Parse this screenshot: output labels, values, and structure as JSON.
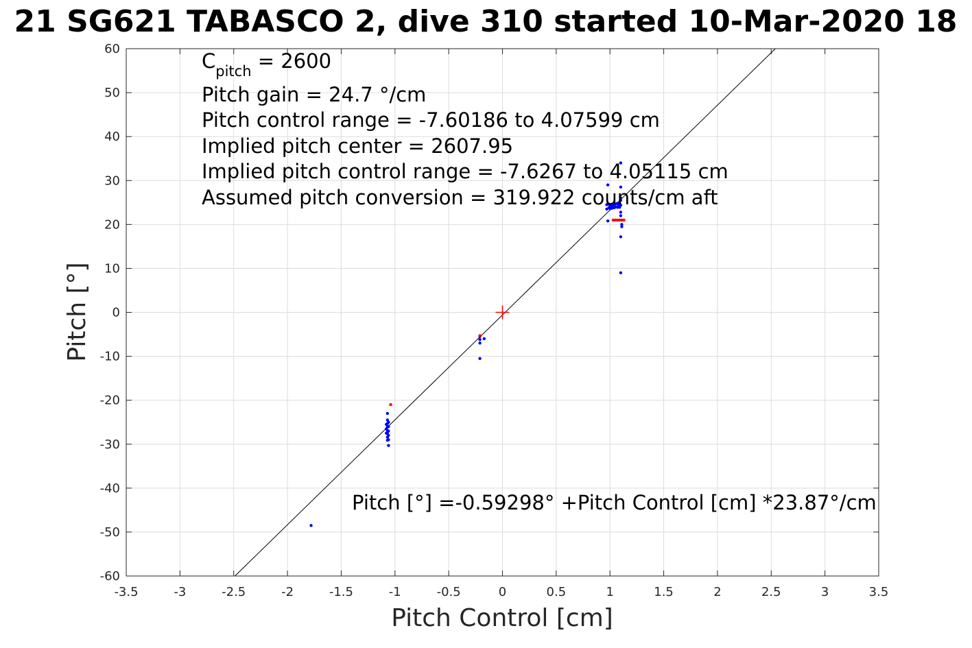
{
  "chart_data": {
    "type": "scatter",
    "title": "21 SG621 TABASCO 2, dive 310 started 10-Mar-2020 18",
    "xlabel": "Pitch Control [cm]",
    "ylabel": "Pitch [°]",
    "xlim": [
      -3.5,
      3.5
    ],
    "ylim": [
      -60,
      60
    ],
    "grid": true,
    "x_ticks": [
      -3.5,
      -3,
      -2.5,
      -2,
      -1.5,
      -1,
      -0.5,
      0,
      0.5,
      1,
      1.5,
      2,
      2.5,
      3,
      3.5
    ],
    "x_tick_labels": [
      "-3.5",
      "-3",
      "-2.5",
      "-2",
      "-1.5",
      "-1",
      "-0.5",
      "0",
      "0.5",
      "1",
      "1.5",
      "2",
      "2.5",
      "3",
      "3.5"
    ],
    "y_ticks": [
      60,
      50,
      40,
      30,
      20,
      10,
      0,
      -10,
      -20,
      -30,
      -40,
      -50,
      -60
    ],
    "y_tick_labels": [
      "60",
      "50",
      "40",
      "30",
      "20",
      "10",
      "0",
      "-10",
      "-20",
      "-30",
      "-40",
      "-50",
      "-60"
    ],
    "colors": {
      "blue": "#0000ff",
      "red": "#ff0000",
      "line": "#000000"
    },
    "fit_line": {
      "intercept": -0.59298,
      "slope": 23.87
    },
    "center_marker": {
      "x": 0,
      "y": 0
    },
    "annotations": {
      "c_pitch_main": "C",
      "c_pitch_sub": "pitch",
      "c_pitch_value": " = 2600",
      "pitch_gain": "Pitch gain = 24.7 °/cm",
      "control_range": "Pitch control range = -7.60186 to 4.07599 cm",
      "implied_center": "Implied pitch center = 2607.95",
      "implied_range": "Implied pitch control range = -7.6267 to 4.05115 cm",
      "conversion": "Assumed pitch conversion = 319.922 counts/cm aft",
      "fit_equation": "Pitch [°] =-0.59298° +Pitch Control [cm] *23.87°/cm"
    },
    "series": [
      {
        "color": "blue",
        "points": [
          [
            -1.78,
            -48.5
          ],
          [
            -1.07,
            -23
          ],
          [
            -1.07,
            -24.5
          ],
          [
            -1.07,
            -25.3
          ],
          [
            -1.07,
            -26.1
          ],
          [
            -1.07,
            -26.9
          ],
          [
            -1.07,
            -27.6
          ],
          [
            -1.07,
            -28.4
          ],
          [
            -1.07,
            -29.1
          ],
          [
            -1.06,
            -25.0
          ],
          [
            -1.06,
            -26.0
          ],
          [
            -1.06,
            -27.0
          ],
          [
            -1.06,
            -28.0
          ],
          [
            -1.06,
            -29.0
          ],
          [
            -1.06,
            -30.3
          ],
          [
            -1.08,
            -25.5
          ],
          [
            -1.08,
            -26.5
          ],
          [
            -1.08,
            -27.5
          ],
          [
            -0.21,
            -5.5
          ],
          [
            -0.21,
            -6.2
          ],
          [
            -0.21,
            -7.0
          ],
          [
            -0.21,
            -10.5
          ],
          [
            -0.17,
            -6.0
          ],
          [
            0.98,
            29
          ],
          [
            0.98,
            20.8
          ],
          [
            0.97,
            23.5
          ],
          [
            0.97,
            24.5
          ],
          [
            0.99,
            23.8
          ],
          [
            0.99,
            24.6
          ],
          [
            1.0,
            23.6
          ],
          [
            1.0,
            24.4
          ],
          [
            1.01,
            24.0
          ],
          [
            1.02,
            23.7
          ],
          [
            1.02,
            24.6
          ],
          [
            1.03,
            24.2
          ],
          [
            1.04,
            23.8
          ],
          [
            1.04,
            24.5
          ],
          [
            1.05,
            24.0
          ],
          [
            1.06,
            24.7
          ],
          [
            1.07,
            23.9
          ],
          [
            1.07,
            24.8
          ],
          [
            1.08,
            24.3
          ],
          [
            1.09,
            23.9
          ],
          [
            1.09,
            24.8
          ],
          [
            1.1,
            24.4
          ],
          [
            1.1,
            25.5
          ],
          [
            1.1,
            26.0
          ],
          [
            1.1,
            22.8
          ],
          [
            1.1,
            22.0
          ],
          [
            1.11,
            20.0
          ],
          [
            1.11,
            19.5
          ],
          [
            1.1,
            17.2
          ],
          [
            1.1,
            28.5
          ],
          [
            1.1,
            34
          ],
          [
            1.1,
            9
          ]
        ]
      },
      {
        "color": "red",
        "points": [
          [
            -1.04,
            -21
          ],
          [
            -0.21,
            -5.3
          ],
          [
            1.03,
            21
          ],
          [
            1.05,
            21
          ],
          [
            1.07,
            21
          ],
          [
            1.09,
            21
          ],
          [
            1.11,
            21
          ],
          [
            1.13,
            21
          ]
        ]
      }
    ]
  }
}
